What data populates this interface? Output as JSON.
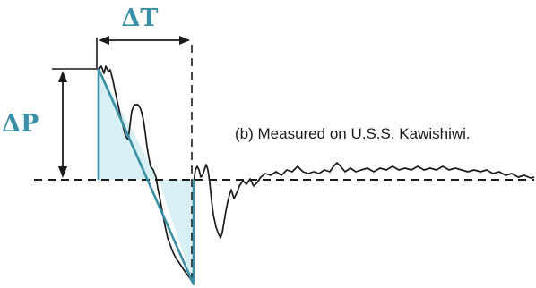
{
  "figure": {
    "caption": "(b) Measured on U.S.S. Kawishiwi.",
    "delta_t_label": "ΔT",
    "delta_p_label": "ΔP"
  },
  "colors": {
    "background": "#ffffff",
    "ink": "#1a1a1a",
    "annotation": "#3a8fa6",
    "shade": "#d8f0f3"
  }
}
